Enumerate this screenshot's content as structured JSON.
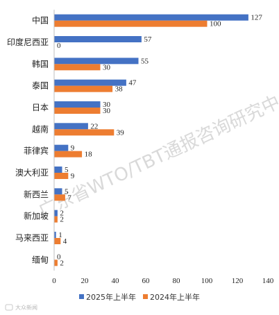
{
  "chart_data": {
    "type": "bar",
    "orientation": "horizontal",
    "categories": [
      "中国",
      "印度尼西亚",
      "韩国",
      "泰国",
      "日本",
      "越南",
      "菲律宾",
      "澳大利亚",
      "新西兰",
      "新加坡",
      "马来西亚",
      "缅甸"
    ],
    "series": [
      {
        "name": "2025年上半年",
        "color": "#4472c4",
        "values": [
          127,
          57,
          55,
          47,
          30,
          22,
          9,
          5,
          5,
          2,
          1,
          0
        ]
      },
      {
        "name": "2024年上半年",
        "color": "#ed7d31",
        "values": [
          100,
          0,
          30,
          38,
          30,
          39,
          18,
          9,
          7,
          2,
          4,
          2
        ]
      }
    ],
    "xlim": [
      0,
      140
    ],
    "xticks": [
      0,
      20,
      40,
      60,
      80,
      100,
      120,
      140
    ],
    "grid": false,
    "legend_position": "bottom",
    "data_labels": true
  },
  "watermark": "广东省WTO/TBT通报咨询研究中心",
  "credit": "大众新闻"
}
